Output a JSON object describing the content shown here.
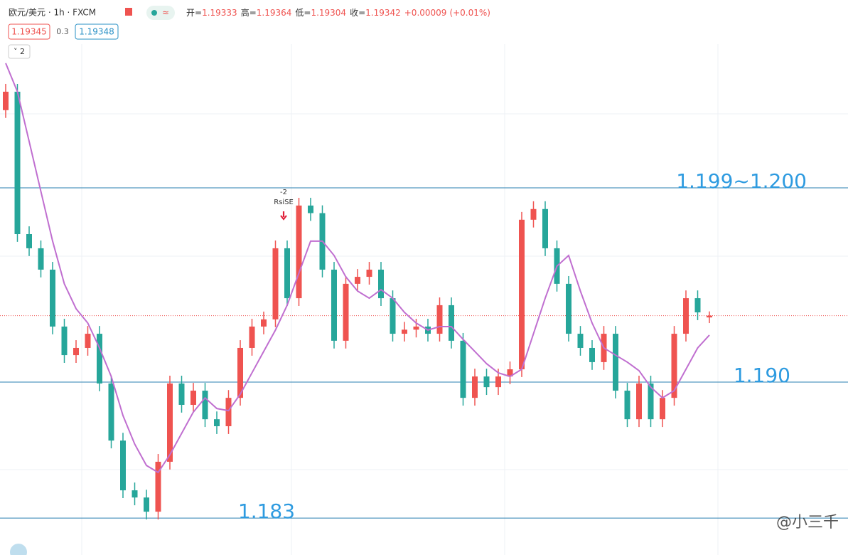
{
  "header": {
    "symbol": "欧元/美元 · 1h · FXCM",
    "open_label": "开=",
    "open": 1.19333,
    "high_label": "高=",
    "high": 1.19364,
    "low_label": "低=",
    "low": 1.19304,
    "close_label": "收=",
    "close": 1.19342,
    "change": "+0.00009",
    "change_pct": "(+0.01%)",
    "bid": 1.19345,
    "spread": 0.3,
    "ask": 1.19348,
    "badge": "2"
  },
  "chart_data": {
    "type": "candlestick",
    "ylim": [
      1.1811,
      1.2074
    ],
    "up_color": "#ef5350",
    "down_color": "#26a69a",
    "open": [
      1.204,
      1.20495,
      1.19762,
      1.19689,
      1.19579,
      1.19286,
      1.19139,
      1.19176,
      1.19249,
      1.18993,
      1.18699,
      1.18443,
      1.18406,
      1.18333,
      1.1859,
      1.18993,
      1.18883,
      1.18956,
      1.18809,
      1.18773,
      1.18919,
      1.19176,
      1.19286,
      1.19323,
      1.19689,
      1.19432,
      1.19909,
      1.1987,
      1.19579,
      1.19213,
      1.19506,
      1.19542,
      1.19579,
      1.19432,
      1.19249,
      1.1927,
      1.19286,
      1.19249,
      1.19396,
      1.19213,
      1.18919,
      1.19029,
      1.18974,
      1.19029,
      1.19066,
      1.19836,
      1.19891,
      1.19689,
      1.19506,
      1.19249,
      1.19176,
      1.19103,
      1.19249,
      1.18956,
      1.18809,
      1.18993,
      1.18809,
      1.18919,
      1.19249,
      1.19432,
      1.19333
    ],
    "high": [
      1.20535,
      1.20535,
      1.19802,
      1.19729,
      1.19619,
      1.19326,
      1.19216,
      1.19289,
      1.19289,
      1.19033,
      1.18739,
      1.18483,
      1.18446,
      1.1863,
      1.19033,
      1.19033,
      1.18996,
      1.18996,
      1.18849,
      1.18959,
      1.19216,
      1.19326,
      1.19363,
      1.19729,
      1.19729,
      1.19949,
      1.19949,
      1.1991,
      1.19619,
      1.19546,
      1.19582,
      1.19619,
      1.19619,
      1.19472,
      1.1931,
      1.19326,
      1.19326,
      1.19436,
      1.19436,
      1.19253,
      1.19069,
      1.19069,
      1.19069,
      1.19106,
      1.19876,
      1.19931,
      1.19931,
      1.19729,
      1.19546,
      1.19289,
      1.19216,
      1.19289,
      1.19289,
      1.18996,
      1.19033,
      1.19033,
      1.18959,
      1.19289,
      1.19472,
      1.19472,
      1.19364
    ],
    "low": [
      1.2036,
      1.19722,
      1.19649,
      1.19539,
      1.19246,
      1.19099,
      1.19099,
      1.19136,
      1.18953,
      1.18659,
      1.18403,
      1.18366,
      1.18293,
      1.18293,
      1.1855,
      1.18843,
      1.18843,
      1.18769,
      1.18733,
      1.18733,
      1.18879,
      1.19136,
      1.19246,
      1.19283,
      1.19392,
      1.19392,
      1.1983,
      1.19539,
      1.19173,
      1.19173,
      1.19466,
      1.19502,
      1.19392,
      1.19209,
      1.19209,
      1.1923,
      1.19209,
      1.19209,
      1.19173,
      1.18879,
      1.18879,
      1.18934,
      1.18934,
      1.18989,
      1.19026,
      1.19796,
      1.19649,
      1.19466,
      1.19209,
      1.19136,
      1.19063,
      1.19063,
      1.18916,
      1.18769,
      1.18769,
      1.18769,
      1.18769,
      1.18879,
      1.19209,
      1.19319,
      1.19304
    ],
    "close": [
      1.20495,
      1.19762,
      1.19689,
      1.19579,
      1.19286,
      1.19139,
      1.19176,
      1.19249,
      1.18993,
      1.18699,
      1.18443,
      1.18406,
      1.18333,
      1.1859,
      1.18993,
      1.18883,
      1.18956,
      1.18809,
      1.18773,
      1.18919,
      1.19176,
      1.19286,
      1.19323,
      1.19689,
      1.19432,
      1.19909,
      1.1987,
      1.19579,
      1.19213,
      1.19506,
      1.19542,
      1.19579,
      1.19432,
      1.19249,
      1.1927,
      1.19286,
      1.19249,
      1.19396,
      1.19213,
      1.18919,
      1.19029,
      1.18974,
      1.19029,
      1.19066,
      1.19836,
      1.19891,
      1.19689,
      1.19506,
      1.19249,
      1.19176,
      1.19103,
      1.19249,
      1.18956,
      1.18809,
      1.18993,
      1.18809,
      1.18919,
      1.19249,
      1.19432,
      1.19359,
      1.19342
    ],
    "ma": {
      "color": "#c06fd0",
      "values": [
        1.20642,
        1.20495,
        1.20239,
        1.19982,
        1.19726,
        1.19506,
        1.19378,
        1.19304,
        1.19176,
        1.19029,
        1.18828,
        1.18681,
        1.18571,
        1.18535,
        1.18626,
        1.18736,
        1.18846,
        1.18919,
        1.18864,
        1.18853,
        1.18938,
        1.19048,
        1.19158,
        1.19268,
        1.19396,
        1.19561,
        1.19726,
        1.19726,
        1.19652,
        1.19542,
        1.19469,
        1.19432,
        1.19476,
        1.19432,
        1.19359,
        1.19304,
        1.19268,
        1.19286,
        1.19286,
        1.1922,
        1.19158,
        1.19095,
        1.19048,
        1.19029,
        1.19066,
        1.19249,
        1.19432,
        1.19597,
        1.19652,
        1.19469,
        1.19304,
        1.19176,
        1.19139,
        1.19103,
        1.19059,
        1.18974,
        1.18919,
        1.18956,
        1.19066,
        1.19176,
        1.19242
      ]
    },
    "levels": [
      {
        "value": 1.2,
        "label": "1.199~1.200"
      },
      {
        "value": 1.19,
        "label": "1.190"
      },
      {
        "value": 1.183,
        "label": "1.183"
      }
    ],
    "level_color": "#2a7fb0",
    "annotations": [
      "-2",
      "RsiSE"
    ]
  },
  "watermark": "@小三千"
}
